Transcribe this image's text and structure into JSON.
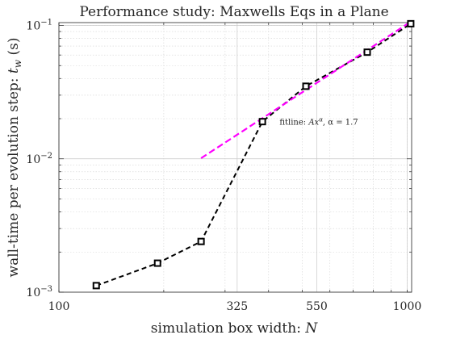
{
  "chart_data": {
    "type": "line",
    "title": "Performance study: Maxwells Eqs in a Plane",
    "xlabel": "simulation box width: N",
    "ylabel": "wall-time per evolution step: t_w (s)",
    "xscale": "log",
    "yscale": "log",
    "xlim": [
      100,
      1030
    ],
    "ylim": [
      0.001,
      0.105
    ],
    "grid": true,
    "x_ticks": [
      100,
      325,
      550,
      1000
    ],
    "y_ticks": [
      {
        "value": 0.001,
        "base": "10",
        "exp": "−3"
      },
      {
        "value": 0.01,
        "base": "10",
        "exp": "−2"
      },
      {
        "value": 0.1,
        "base": "10",
        "exp": "−1"
      }
    ],
    "series": [
      {
        "style": "black dashed, square markers",
        "color": "#000000",
        "x": [
          128,
          192,
          256,
          384,
          512,
          768,
          1024
        ],
        "y": [
          0.00112,
          0.00165,
          0.0024,
          0.019,
          0.035,
          0.063,
          0.103
        ]
      },
      {
        "style": "magenta dashed fit",
        "color": "#ff00ff",
        "x": [
          256,
          1024
        ],
        "y": [
          0.0101,
          0.1066
        ]
      }
    ],
    "annotation": {
      "text_prefix": "fitline: ",
      "formula_base": "Ax",
      "formula_exp": "α",
      "formula_rest": ", α = 1.7",
      "anchor": [
        430,
        0.019
      ]
    }
  }
}
